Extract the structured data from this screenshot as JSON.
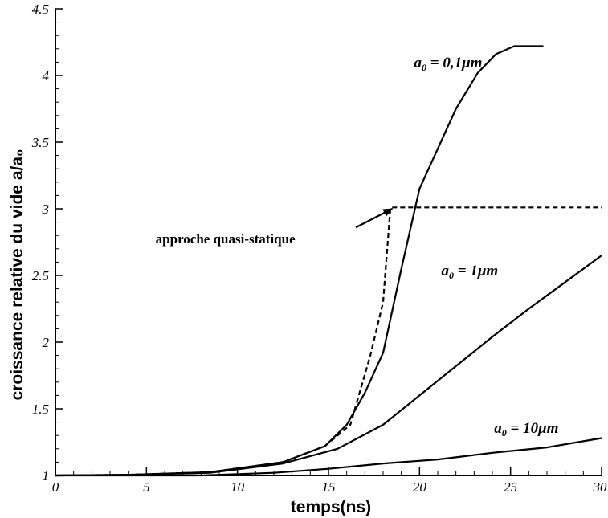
{
  "chart_data": {
    "type": "line",
    "xlabel": "temps(ns)",
    "ylabel": "croissance relative du vide a/a₀",
    "xlim": [
      0,
      30
    ],
    "ylim": [
      1,
      4.5
    ],
    "x_ticks": [
      "0",
      "5",
      "10",
      "15",
      "20",
      "25",
      "30"
    ],
    "y_ticks": [
      "1",
      "1.5",
      "2",
      "2.5",
      "3",
      "3.5",
      "4",
      "4.5"
    ],
    "grid": false,
    "series": [
      {
        "name": "a₀ = 0,1μm",
        "style": "solid",
        "x": [
          0,
          4,
          8.5,
          12.5,
          14.8,
          16,
          17,
          18,
          19,
          20,
          21,
          22,
          23.2,
          24.2,
          25.2,
          26.8
        ],
        "y": [
          1,
          1.005,
          1.025,
          1.1,
          1.22,
          1.38,
          1.62,
          1.92,
          2.55,
          3.15,
          3.45,
          3.75,
          4.02,
          4.16,
          4.22,
          4.22
        ]
      },
      {
        "name": "a₀ = 1μm",
        "style": "solid",
        "x": [
          0,
          4,
          8.5,
          12.5,
          15.5,
          18,
          20,
          22,
          24,
          26,
          28,
          30
        ],
        "y": [
          1,
          1.005,
          1.02,
          1.09,
          1.2,
          1.38,
          1.6,
          1.82,
          2.04,
          2.25,
          2.45,
          2.65
        ]
      },
      {
        "name": "a₀ = 10μm",
        "style": "solid",
        "x": [
          0,
          8,
          12,
          15,
          18,
          21,
          24,
          27,
          30
        ],
        "y": [
          1,
          1,
          1.02,
          1.05,
          1.09,
          1.12,
          1.17,
          1.21,
          1.28
        ]
      },
      {
        "name": "approche quasi-statique",
        "style": "dashed",
        "x": [
          0,
          4,
          8.5,
          12.5,
          14.8,
          16.2,
          17.3,
          18,
          18.4,
          30
        ],
        "y": [
          1,
          1.005,
          1.025,
          1.1,
          1.22,
          1.38,
          1.9,
          2.3,
          3.01,
          3.01
        ]
      }
    ],
    "annotations": [
      {
        "text": "a₀ = 0,1μm",
        "main": "a",
        "sub": "0",
        "rest": " = 0,1μm",
        "x": 19.7,
        "y": 4.06,
        "italic": true
      },
      {
        "text": "a₀ = 1μm",
        "main": "a",
        "sub": "0",
        "rest": " = 1μm",
        "x": 21.2,
        "y": 2.5,
        "italic": true
      },
      {
        "text": "a₀ = 10μm",
        "main": "a",
        "sub": "0",
        "rest": " = 10μm",
        "x": 24.1,
        "y": 1.32,
        "italic": true
      },
      {
        "text": "approche quasi-statique",
        "x": 5.5,
        "y": 2.74,
        "italic": false,
        "arrow_from": [
          16.5,
          2.86
        ],
        "arrow_to": [
          18.5,
          3.0
        ]
      }
    ]
  }
}
